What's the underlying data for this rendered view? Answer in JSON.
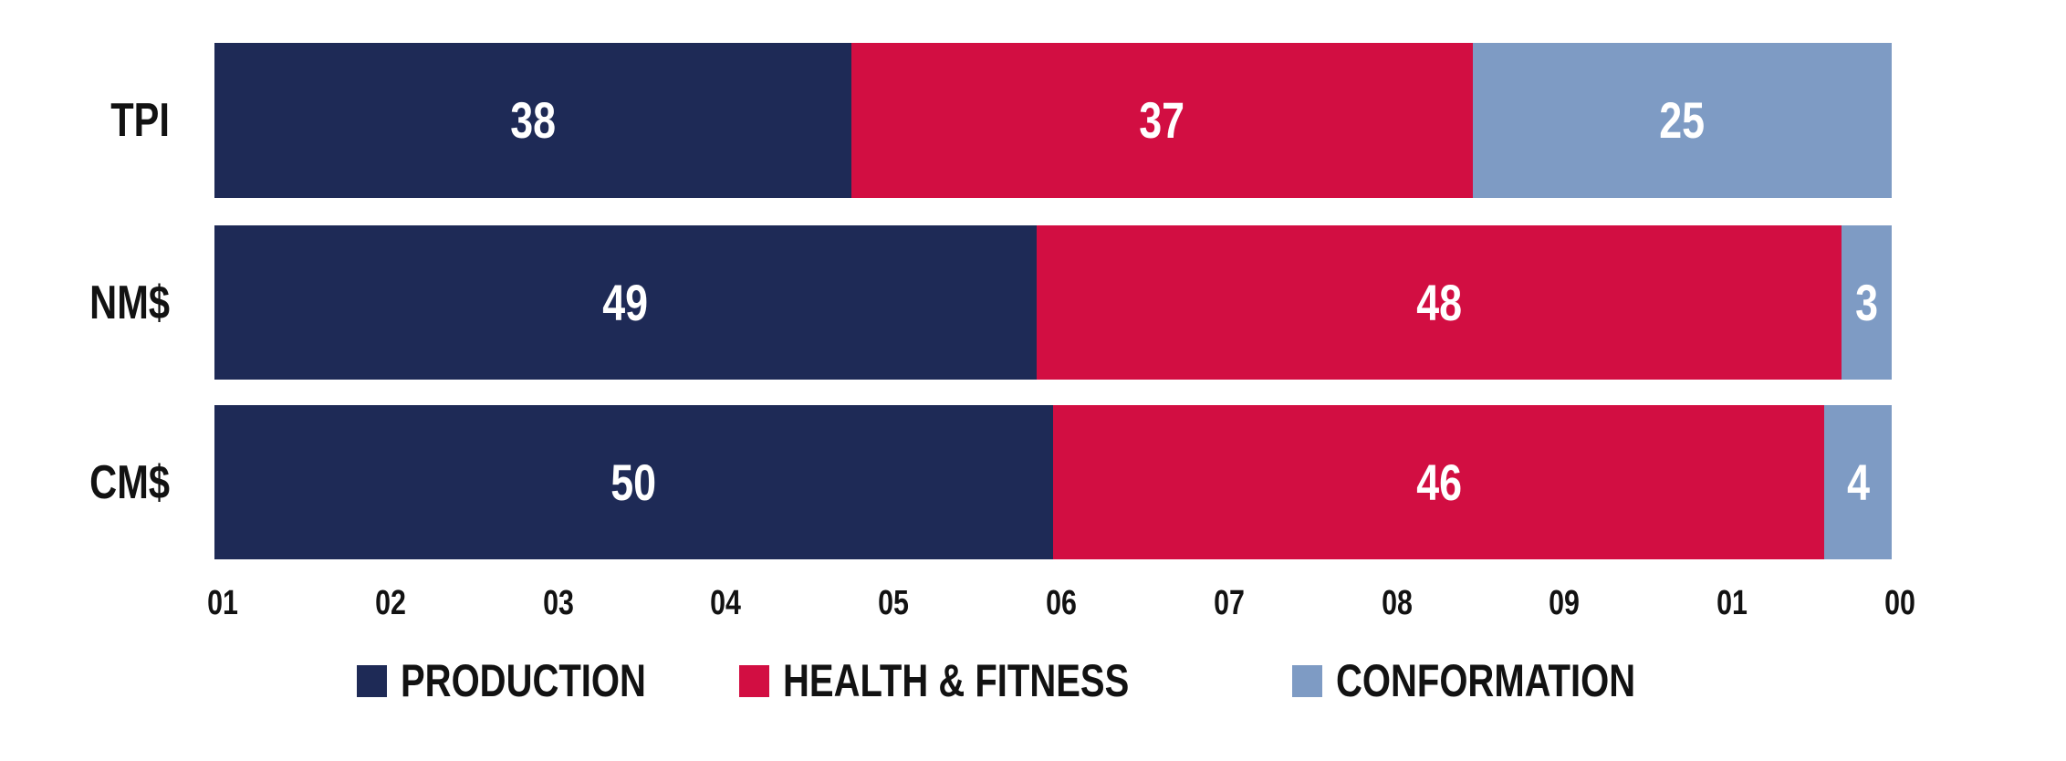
{
  "chart_data": {
    "type": "bar",
    "orientation": "horizontal_stacked",
    "title": "",
    "categories": [
      "TPI",
      "NM$",
      "CM$"
    ],
    "series": [
      {
        "name": "PRODUCTION",
        "color": "#1E2A56",
        "values": [
          38,
          49,
          50
        ]
      },
      {
        "name": "HEALTH & FITNESS",
        "color": "#D20E42",
        "values": [
          37,
          48,
          46
        ]
      },
      {
        "name": "CONFORMATION",
        "color": "#7E9BC4",
        "values": [
          25,
          3,
          4
        ]
      }
    ],
    "x_tick_labels": [
      "01",
      "02",
      "03",
      "04",
      "05",
      "06",
      "07",
      "08",
      "09",
      "01",
      "00"
    ],
    "xlim": [
      0,
      100
    ],
    "gridlines": false,
    "legend_position": "bottom",
    "value_labels": "inside-center",
    "value_label_color": "#FFFFFF",
    "text_color": "#121212",
    "background": "#FFFFFF"
  }
}
